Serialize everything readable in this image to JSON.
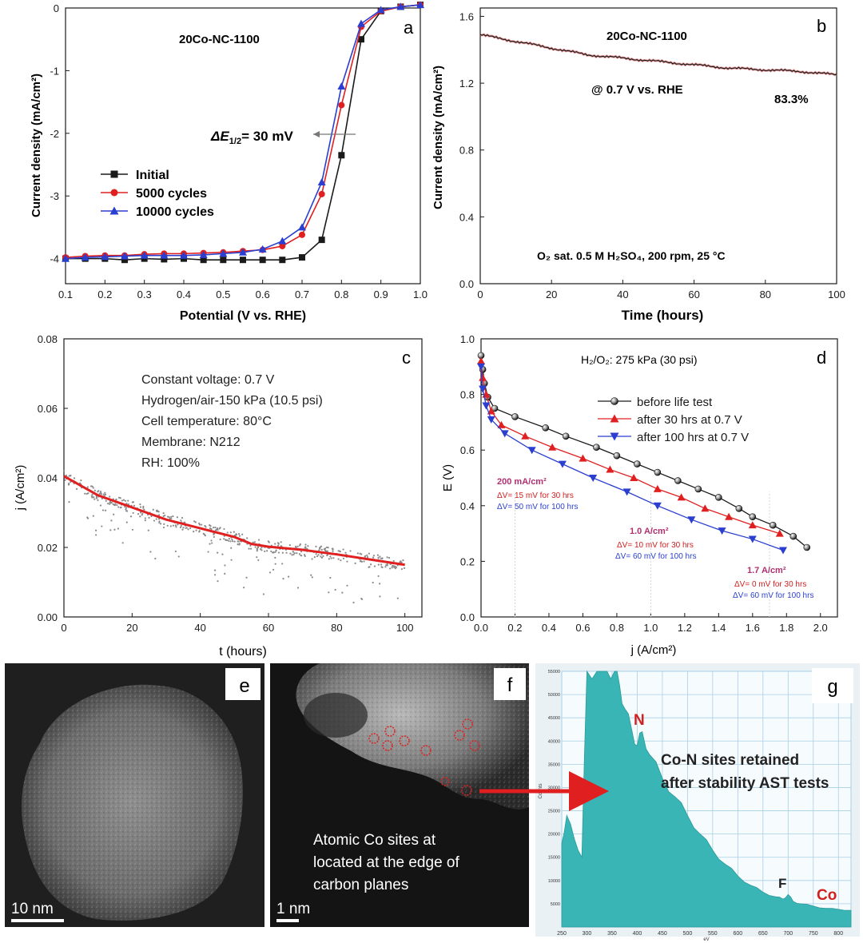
{
  "chart_data": [
    {
      "panel": "a",
      "type": "line",
      "title": "20Co-NC-1100",
      "xlabel": "Potential (V vs. RHE)",
      "ylabel": "Current density (mA/cm²)",
      "xlim": [
        0.1,
        1.0
      ],
      "ylim": [
        -4.4,
        0.0
      ],
      "xticks": [
        "0.1",
        "0.2",
        "0.3",
        "0.4",
        "0.5",
        "0.6",
        "0.7",
        "0.8",
        "0.9",
        "1.0"
      ],
      "yticks": [
        "0",
        "-1",
        "-2",
        "-3",
        "-4"
      ],
      "annotation_prefix": "ΔE",
      "annotation_sub": "1/2",
      "annotation_suffix": "= 30 mV",
      "series": [
        {
          "name": "Initial",
          "color": "#1a1a1a",
          "marker": "square",
          "x": [
            0.1,
            0.15,
            0.2,
            0.25,
            0.3,
            0.35,
            0.4,
            0.45,
            0.5,
            0.55,
            0.6,
            0.65,
            0.7,
            0.75,
            0.8,
            0.85,
            0.9,
            0.95,
            1.0
          ],
          "y": [
            -4.0,
            -4.0,
            -4.0,
            -4.02,
            -4.0,
            -4.01,
            -4.0,
            -4.02,
            -4.02,
            -4.02,
            -4.02,
            -4.02,
            -3.98,
            -3.7,
            -2.35,
            -0.5,
            -0.05,
            0.02,
            0.05
          ]
        },
        {
          "name": "5000 cycles",
          "color": "#e02020",
          "marker": "circle",
          "x": [
            0.1,
            0.15,
            0.2,
            0.25,
            0.3,
            0.35,
            0.4,
            0.45,
            0.5,
            0.55,
            0.6,
            0.65,
            0.7,
            0.75,
            0.8,
            0.85,
            0.9,
            0.95,
            1.0
          ],
          "y": [
            -3.98,
            -3.96,
            -3.95,
            -3.95,
            -3.93,
            -3.92,
            -3.92,
            -3.91,
            -3.9,
            -3.88,
            -3.86,
            -3.8,
            -3.62,
            -2.97,
            -1.55,
            -0.3,
            -0.05,
            0.02,
            0.05
          ]
        },
        {
          "name": "10000 cycles",
          "color": "#2a3fd0",
          "marker": "triangle",
          "x": [
            0.1,
            0.15,
            0.2,
            0.25,
            0.3,
            0.35,
            0.4,
            0.45,
            0.5,
            0.55,
            0.6,
            0.65,
            0.7,
            0.75,
            0.8,
            0.85,
            0.9,
            0.95,
            1.0
          ],
          "y": [
            -4.0,
            -3.98,
            -3.97,
            -3.96,
            -3.95,
            -3.95,
            -3.95,
            -3.94,
            -3.92,
            -3.9,
            -3.85,
            -3.72,
            -3.5,
            -2.78,
            -1.25,
            -0.25,
            -0.03,
            0.02,
            0.05
          ]
        }
      ]
    },
    {
      "panel": "b",
      "type": "line",
      "title": "20Co-NC-1100",
      "xlabel": "Time (hours)",
      "ylabel": "Current density (mA/cm²)",
      "xlim": [
        0,
        100
      ],
      "ylim": [
        0.0,
        1.65
      ],
      "xticks": [
        "0",
        "20",
        "40",
        "60",
        "80",
        "100"
      ],
      "yticks": [
        "0.0",
        "0.4",
        "0.8",
        "1.2",
        "1.6"
      ],
      "annotation_condition": "@ 0.7 V vs. RHE",
      "annotation_retention": "83.3%",
      "annotation_electrolyte": "O₂ sat. 0.5 M H₂SO₄, 200 rpm, 25 °C",
      "series": [
        {
          "name": "stability",
          "color": "#1a1a1a",
          "x": [
            0,
            10,
            20,
            30,
            40,
            50,
            60,
            70,
            80,
            90,
            100
          ],
          "y": [
            1.49,
            1.45,
            1.41,
            1.37,
            1.35,
            1.33,
            1.31,
            1.29,
            1.28,
            1.27,
            1.25
          ]
        }
      ]
    },
    {
      "panel": "c",
      "type": "scatter",
      "xlabel": "t (hours)",
      "ylabel": "j (A/cm²)",
      "xlim": [
        0,
        105
      ],
      "ylim": [
        0.0,
        0.08
      ],
      "xticks": [
        "0",
        "20",
        "40",
        "60",
        "80",
        "100"
      ],
      "yticks": [
        "0.00",
        "0.02",
        "0.04",
        "0.06",
        "0.08"
      ],
      "conditions": [
        "Constant voltage: 0.7 V",
        "Hydrogen/air-150 kPa (10.5 psi)",
        "Cell temperature: 80°C",
        "Membrane:  N212",
        "RH: 100%"
      ],
      "series": [
        {
          "name": "fit",
          "color": "#e02020",
          "x": [
            0,
            10,
            20,
            30,
            40,
            50,
            55,
            60,
            70,
            80,
            90,
            100
          ],
          "y": [
            0.0405,
            0.035,
            0.0315,
            0.028,
            0.0255,
            0.023,
            0.021,
            0.0202,
            0.0193,
            0.018,
            0.0165,
            0.015
          ]
        }
      ]
    },
    {
      "panel": "d",
      "type": "line",
      "xlabel": "j (A/cm²)",
      "ylabel": "E (V)",
      "xlim": [
        0.0,
        2.1
      ],
      "ylim": [
        0.0,
        1.0
      ],
      "xticks": [
        "0.0",
        "0.2",
        "0.4",
        "0.6",
        "0.8",
        "1.0",
        "1.2",
        "1.4",
        "1.6",
        "1.8",
        "2.0"
      ],
      "yticks": [
        "0.0",
        "0.2",
        "0.4",
        "0.6",
        "0.8",
        "1.0"
      ],
      "header": "H₂/O₂: 275 kPa (30 psi)",
      "groups": [
        {
          "title": "200 mA/cm²",
          "line1": "ΔV= 15 mV for 30 hrs",
          "line2": "ΔV= 50 mV for 100 hrs"
        },
        {
          "title": "1.0 A/cm²",
          "line1": "ΔV= 10 mV for 30 hrs",
          "line2": "ΔV= 60 mV for 100 hrs"
        },
        {
          "title": "1.7 A/cm²",
          "line1": "ΔV= 0 mV for 30 hrs",
          "line2": "ΔV= 60 mV for 100 hrs"
        }
      ],
      "series": [
        {
          "name": "before life test",
          "color": "#1a1a1a",
          "marker": "ball",
          "x": [
            0.0,
            0.01,
            0.02,
            0.04,
            0.08,
            0.2,
            0.38,
            0.5,
            0.68,
            0.8,
            0.92,
            1.04,
            1.16,
            1.28,
            1.4,
            1.52,
            1.6,
            1.72,
            1.84,
            1.92
          ],
          "y": [
            0.94,
            0.89,
            0.84,
            0.79,
            0.75,
            0.72,
            0.68,
            0.65,
            0.61,
            0.58,
            0.55,
            0.52,
            0.49,
            0.46,
            0.43,
            0.39,
            0.36,
            0.33,
            0.29,
            0.25
          ]
        },
        {
          "name": "after 30 hrs at 0.7 V",
          "color": "#e02020",
          "marker": "triangle",
          "x": [
            0.0,
            0.01,
            0.03,
            0.06,
            0.12,
            0.26,
            0.42,
            0.6,
            0.76,
            0.9,
            1.04,
            1.18,
            1.32,
            1.46,
            1.6,
            1.76
          ],
          "y": [
            0.92,
            0.86,
            0.8,
            0.74,
            0.69,
            0.65,
            0.61,
            0.57,
            0.53,
            0.5,
            0.46,
            0.43,
            0.39,
            0.36,
            0.33,
            0.3
          ]
        },
        {
          "name": "after 100 hrs at 0.7 V",
          "color": "#2a3fd0",
          "marker": "triangle-down",
          "x": [
            0.0,
            0.01,
            0.03,
            0.06,
            0.14,
            0.3,
            0.48,
            0.66,
            0.86,
            1.04,
            1.24,
            1.42,
            1.6,
            1.78
          ],
          "y": [
            0.9,
            0.82,
            0.76,
            0.71,
            0.66,
            0.6,
            0.55,
            0.5,
            0.45,
            0.4,
            0.35,
            0.31,
            0.28,
            0.24
          ]
        }
      ]
    },
    {
      "panel": "g",
      "type": "area",
      "xticks": [
        "250",
        "300",
        "350",
        "400",
        "450",
        "500",
        "550",
        "600",
        "650",
        "700",
        "750",
        "800"
      ],
      "yticks": [
        "5000",
        "10000",
        "15000",
        "20000",
        "25000",
        "30000",
        "35000",
        "40000",
        "45000",
        "50000",
        "55000"
      ],
      "ylabel": "Counts",
      "xlabel": "eV",
      "xlim": [
        250,
        825
      ],
      "ylim": [
        0,
        55000
      ],
      "peak_labels": [
        "N",
        "F",
        "Co"
      ],
      "annotation": [
        "Co-N sites retained",
        "after stability AST tests"
      ],
      "series": [
        {
          "name": "spectrum",
          "color": "#39b5b5",
          "x": [
            250,
            260,
            275,
            290,
            300,
            320,
            340,
            355,
            365,
            375,
            390,
            400,
            410,
            425,
            450,
            475,
            500,
            525,
            550,
            575,
            600,
            625,
            650,
            675,
            690,
            700,
            710,
            725,
            750,
            775,
            800,
            825
          ],
          "y": [
            18000,
            24000,
            19000,
            15000,
            55000,
            55000,
            55000,
            55000,
            52000,
            47000,
            42000,
            39000,
            42000,
            37000,
            32000,
            28000,
            24000,
            20000,
            16500,
            13500,
            11000,
            9000,
            7500,
            6500,
            6000,
            7000,
            5500,
            5000,
            4500,
            4000,
            3800,
            3600
          ]
        }
      ]
    }
  ],
  "panels": {
    "a_label": "a",
    "b_label": "b",
    "c_label": "c",
    "d_label": "d",
    "e_label": "e",
    "f_label": "f",
    "g_label": "g",
    "e_scale": "10 nm",
    "f_scale": "1 nm",
    "f_caption": [
      "Atomic Co sites at",
      "located at the edge of",
      "carbon planes"
    ]
  },
  "colors": {
    "black": "#1a1a1a",
    "red": "#e02020",
    "blue": "#2a3fd0",
    "magenta": "#b0306f",
    "teal": "#39b5b5",
    "gridblue": "#a9cfe6"
  }
}
